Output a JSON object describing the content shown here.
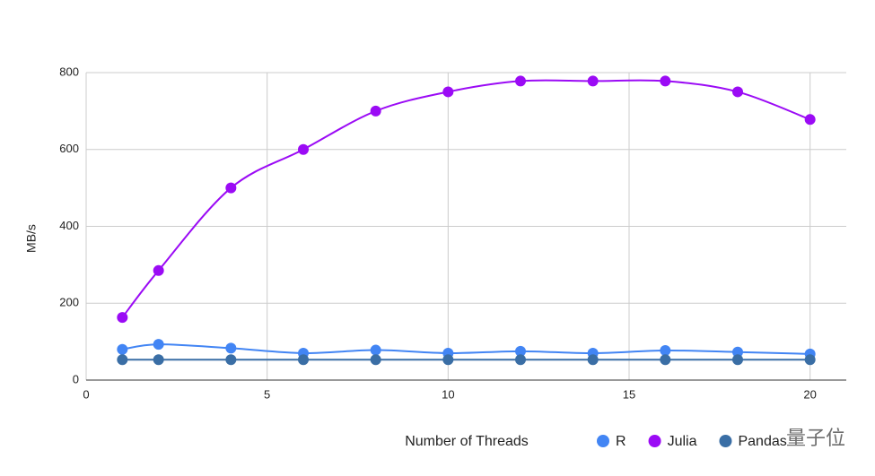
{
  "chart_data": {
    "type": "line",
    "x_label": "Number of Threads",
    "y_label": "MB/s",
    "x": [
      1,
      2,
      4,
      6,
      8,
      10,
      12,
      14,
      16,
      18,
      20
    ],
    "series": [
      {
        "name": "R",
        "color": "#4285f4",
        "values": [
          80,
          93,
          83,
          70,
          78,
          70,
          75,
          70,
          77,
          73,
          68
        ]
      },
      {
        "name": "Julia",
        "color": "#9b0bf5",
        "values": [
          163,
          285,
          500,
          600,
          700,
          750,
          778,
          778,
          778,
          750,
          678
        ]
      },
      {
        "name": "Pandas",
        "color": "#3a6ea5",
        "values": [
          53,
          53,
          53,
          53,
          53,
          53,
          53,
          53,
          53,
          53,
          53
        ]
      }
    ],
    "xlim": [
      0,
      21
    ],
    "xticks": [
      0,
      5,
      10,
      15,
      20
    ],
    "ylim": [
      0,
      800
    ],
    "yticks": [
      0,
      200,
      400,
      600,
      800
    ],
    "grid": true,
    "smooth": true,
    "legend": "bottom-right",
    "watermark": "量子位"
  }
}
